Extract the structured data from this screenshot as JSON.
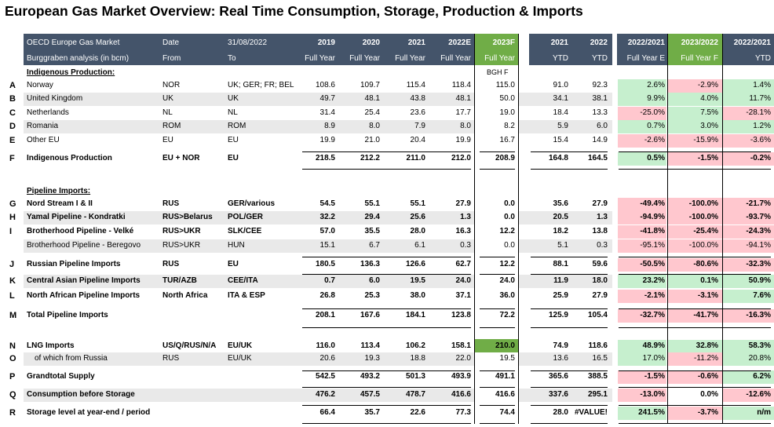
{
  "title": "European Gas Market Overview: Real Time Consumption, Storage, Production & Imports",
  "header": {
    "row1": [
      "OECD Europe Gas Market",
      "Date",
      "31/08/2022",
      "2019",
      "2020",
      "2021",
      "2022E",
      "2023F",
      "2021",
      "2022",
      "2022/2021",
      "2023/2022",
      "2022/2021"
    ],
    "row2": [
      "Burggraben analysis (in bcm)",
      "From",
      "To",
      "Full Year",
      "Full Year",
      "Full Year",
      "Full Year",
      "Full Year",
      "YTD",
      "YTD",
      "Full Year E",
      "Full Year F",
      "YTD"
    ]
  },
  "bgh_note": "BGH F",
  "sections": {
    "indigenous": "Indigenous Production:",
    "pipeline": "Pipeline Imports:"
  },
  "colors": {
    "header_bg": "#44546a",
    "forecast_green": "#70ad47",
    "light_green": "#c6efce",
    "light_red": "#ffc7ce",
    "row_grey": "#e9e9e9"
  },
  "rows": [
    {
      "letter": "A",
      "name": "Norway",
      "from": "NOR",
      "to": "UK; GER; FR; BEL",
      "y2019": "108.6",
      "y2020": "109.7",
      "y2021": "115.4",
      "y2022": "118.4",
      "y2023": "115.0",
      "ytd21": "91.0",
      "ytd22": "92.3",
      "p1": "2.6%",
      "p2": "-2.9%",
      "p3": "1.4%",
      "c1": "g",
      "c2": "r",
      "c3": "g",
      "bold": false,
      "grey": false
    },
    {
      "letter": "B",
      "name": "United Kingdom",
      "from": "UK",
      "to": "UK",
      "y2019": "49.7",
      "y2020": "48.1",
      "y2021": "43.8",
      "y2022": "48.1",
      "y2023": "50.0",
      "ytd21": "34.1",
      "ytd22": "38.1",
      "p1": "9.9%",
      "p2": "4.0%",
      "p3": "11.7%",
      "c1": "g",
      "c2": "g",
      "c3": "g",
      "bold": false,
      "grey": true
    },
    {
      "letter": "C",
      "name": "Netherlands",
      "from": "NL",
      "to": "NL",
      "y2019": "31.4",
      "y2020": "25.4",
      "y2021": "23.6",
      "y2022": "17.7",
      "y2023": "19.0",
      "ytd21": "18.4",
      "ytd22": "13.3",
      "p1": "-25.0%",
      "p2": "7.5%",
      "p3": "-28.1%",
      "c1": "r",
      "c2": "g",
      "c3": "r",
      "bold": false,
      "grey": false
    },
    {
      "letter": "D",
      "name": "Romania",
      "from": "ROM",
      "to": "ROM",
      "y2019": "8.9",
      "y2020": "8.0",
      "y2021": "7.9",
      "y2022": "8.0",
      "y2023": "8.2",
      "ytd21": "5.9",
      "ytd22": "6.0",
      "p1": "0.7%",
      "p2": "3.0%",
      "p3": "1.2%",
      "c1": "g",
      "c2": "g",
      "c3": "g",
      "bold": false,
      "grey": true
    },
    {
      "letter": "E",
      "name": "Other EU",
      "from": "EU",
      "to": "EU",
      "y2019": "19.9",
      "y2020": "21.0",
      "y2021": "20.4",
      "y2022": "19.9",
      "y2023": "16.7",
      "ytd21": "15.4",
      "ytd22": "14.9",
      "p1": "-2.6%",
      "p2": "-15.9%",
      "p3": "-3.6%",
      "c1": "r",
      "c2": "r",
      "c3": "r",
      "bold": false,
      "grey": false
    },
    {
      "letter": "F",
      "name": "Indigenous Production",
      "from": "EU + NOR",
      "to": "EU",
      "y2019": "218.5",
      "y2020": "212.2",
      "y2021": "211.0",
      "y2022": "212.0",
      "y2023": "208.9",
      "ytd21": "164.8",
      "ytd22": "164.5",
      "p1": "0.5%",
      "p2": "-1.5%",
      "p3": "-0.2%",
      "c1": "g",
      "c2": "r",
      "c3": "r",
      "bold": true,
      "grey": false
    },
    {
      "letter": "G",
      "name": "Nord Stream I & II",
      "from": "RUS",
      "to": "GER/various",
      "y2019": "54.5",
      "y2020": "55.1",
      "y2021": "55.1",
      "y2022": "27.9",
      "y2023": "0.0",
      "ytd21": "35.6",
      "ytd22": "27.9",
      "p1": "-49.4%",
      "p2": "-100.0%",
      "p3": "-21.7%",
      "c1": "r",
      "c2": "r",
      "c3": "r",
      "bold": true,
      "grey": false
    },
    {
      "letter": "H",
      "name": "Yamal Pipeline - Kondratki",
      "from": "RUS>Belarus",
      "to": "POL/GER",
      "y2019": "32.2",
      "y2020": "29.4",
      "y2021": "25.6",
      "y2022": "1.3",
      "y2023": "0.0",
      "ytd21": "20.5",
      "ytd22": "1.3",
      "p1": "-94.9%",
      "p2": "-100.0%",
      "p3": "-93.7%",
      "c1": "r",
      "c2": "r",
      "c3": "r",
      "bold": true,
      "grey": true
    },
    {
      "letter": "I",
      "name": "Brotherhood Pipeline - Velké",
      "from": "RUS>UKR",
      "to": "SLK/CEE",
      "y2019": "57.0",
      "y2020": "35.5",
      "y2021": "28.0",
      "y2022": "16.3",
      "y2023": "12.2",
      "ytd21": "18.2",
      "ytd22": "13.8",
      "p1": "-41.8%",
      "p2": "-25.4%",
      "p3": "-24.3%",
      "c1": "r",
      "c2": "r",
      "c3": "r",
      "bold": true,
      "grey": false
    },
    {
      "letter": "",
      "name": "Brotherhood Pipeline - Beregovo",
      "from": "RUS>UKR",
      "to": "HUN",
      "y2019": "15.1",
      "y2020": "6.7",
      "y2021": "6.1",
      "y2022": "0.3",
      "y2023": "0.0",
      "ytd21": "5.1",
      "ytd22": "0.3",
      "p1": "-95.1%",
      "p2": "-100.0%",
      "p3": "-94.1%",
      "c1": "r",
      "c2": "r",
      "c3": "r",
      "bold": false,
      "grey": true
    },
    {
      "letter": "J",
      "name": "Russian Pipeline Imports",
      "from": "RUS",
      "to": "EU",
      "y2019": "180.5",
      "y2020": "136.3",
      "y2021": "126.6",
      "y2022": "62.7",
      "y2023": "12.2",
      "ytd21": "88.1",
      "ytd22": "59.6",
      "p1": "-50.5%",
      "p2": "-80.6%",
      "p3": "-32.3%",
      "c1": "r",
      "c2": "r",
      "c3": "r",
      "bold": true,
      "grey": false
    },
    {
      "letter": "K",
      "name": "Central Asian Pipeline Imports",
      "from": "TUR/AZB",
      "to": "CEE/ITA",
      "y2019": "0.7",
      "y2020": "6.0",
      "y2021": "19.5",
      "y2022": "24.0",
      "y2023": "24.0",
      "ytd21": "11.9",
      "ytd22": "18.0",
      "p1": "23.2%",
      "p2": "0.1%",
      "p3": "50.9%",
      "c1": "g",
      "c2": "g",
      "c3": "g",
      "bold": true,
      "grey": true
    },
    {
      "letter": "L",
      "name": "North African Pipeline Imports",
      "from": "North Africa",
      "to": "ITA & ESP",
      "y2019": "26.8",
      "y2020": "25.3",
      "y2021": "38.0",
      "y2022": "37.1",
      "y2023": "36.0",
      "ytd21": "25.9",
      "ytd22": "27.9",
      "p1": "-2.1%",
      "p2": "-3.1%",
      "p3": "7.6%",
      "c1": "r",
      "c2": "r",
      "c3": "g",
      "bold": true,
      "grey": false
    },
    {
      "letter": "M",
      "name": "Total Pipeline Imports",
      "from": "",
      "to": "",
      "y2019": "208.1",
      "y2020": "167.6",
      "y2021": "184.1",
      "y2022": "123.8",
      "y2023": "72.2",
      "ytd21": "125.9",
      "ytd22": "105.4",
      "p1": "-32.7%",
      "p2": "-41.7%",
      "p3": "-16.3%",
      "c1": "r",
      "c2": "r",
      "c3": "r",
      "bold": true,
      "grey": false
    },
    {
      "letter": "N",
      "name": "LNG Imports",
      "from": "US/Q/RUS/N/A",
      "to": "EU/UK",
      "y2019": "116.0",
      "y2020": "113.4",
      "y2021": "106.2",
      "y2022": "158.1",
      "y2023": "210.0",
      "ytd21": "74.9",
      "ytd22": "118.6",
      "p1": "48.9%",
      "p2": "32.8%",
      "p3": "58.3%",
      "c1": "g",
      "c2": "g",
      "c3": "g",
      "bold": true,
      "grey": false
    },
    {
      "letter": "O",
      "name": "of which from Russia",
      "from": "RUS",
      "to": "EU/UK",
      "y2019": "20.6",
      "y2020": "19.3",
      "y2021": "18.8",
      "y2022": "22.0",
      "y2023": "19.5",
      "ytd21": "13.6",
      "ytd22": "16.5",
      "p1": "17.0%",
      "p2": "-11.2%",
      "p3": "20.8%",
      "c1": "g",
      "c2": "r",
      "c3": "g",
      "bold": false,
      "grey": true
    },
    {
      "letter": "P",
      "name": "Grandtotal Supply",
      "from": "",
      "to": "",
      "y2019": "542.5",
      "y2020": "493.2",
      "y2021": "501.3",
      "y2022": "493.9",
      "y2023": "491.1",
      "ytd21": "365.6",
      "ytd22": "388.5",
      "p1": "-1.5%",
      "p2": "-0.6%",
      "p3": "6.2%",
      "c1": "r",
      "c2": "r",
      "c3": "g",
      "bold": true,
      "grey": false
    },
    {
      "letter": "Q",
      "name": "Consumption before Storage",
      "from": "",
      "to": "",
      "y2019": "476.2",
      "y2020": "457.5",
      "y2021": "478.7",
      "y2022": "416.6",
      "y2023": "416.6",
      "ytd21": "337.6",
      "ytd22": "295.1",
      "p1": "-13.0%",
      "p2": "0.0%",
      "p3": "-12.6%",
      "c1": "r",
      "c2": "w",
      "c3": "r",
      "bold": true,
      "grey": true
    },
    {
      "letter": "R",
      "name": "Storage level at year-end / period",
      "from": "",
      "to": "",
      "y2019": "66.4",
      "y2020": "35.7",
      "y2021": "22.6",
      "y2022": "77.3",
      "y2023": "74.4",
      "ytd21": "28.0",
      "ytd22": "#VALUE!",
      "p1": "241.5%",
      "p2": "-3.7%",
      "p3": "n/m",
      "c1": "g",
      "c2": "r",
      "c3": "g",
      "bold": true,
      "grey": false
    }
  ]
}
